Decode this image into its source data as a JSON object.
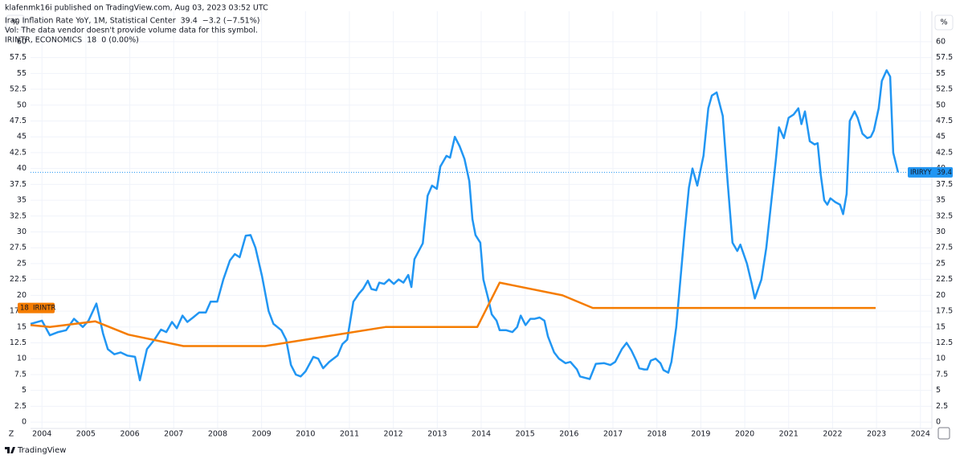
{
  "chart_data": {
    "type": "line",
    "published": "klafenmk16i published on TradingView.com, Aug 03, 2023 03:52 UTC",
    "title": "Iran Inflation Rate YoY, 1M, Statistical Center",
    "change": "−3.2 (−7.51%)",
    "vol_note": "Vol: The data vendor doesn't provide volume data for this symbol.",
    "second_title": "IRINTR, ECONOMICS",
    "second_change": "0 (0.00%)",
    "y_unit": "%",
    "z_button": "Z",
    "footer": "TradingView",
    "xlim": [
      2003.74,
      2024.26
    ],
    "xticks": [
      2004,
      2005,
      2006,
      2007,
      2008,
      2009,
      2010,
      2011,
      2012,
      2013,
      2014,
      2015,
      2016,
      2017,
      2018,
      2019,
      2020,
      2021,
      2022,
      2023,
      2024
    ],
    "ylim": [
      -1,
      61
    ],
    "yticks": [
      0,
      2.5,
      5,
      7.5,
      10,
      12.5,
      15,
      17.5,
      20,
      22.5,
      25,
      27.5,
      30,
      32.5,
      35,
      37.5,
      40,
      42.5,
      45,
      47.5,
      50,
      52.5,
      55,
      57.5,
      60
    ],
    "grid": true,
    "series": [
      {
        "name": "IRIRYY",
        "color": "#2196f3",
        "x": [
          2003.74,
          2004.0,
          2004.18,
          2004.37,
          2004.55,
          2004.73,
          2004.93,
          2005.06,
          2005.24,
          2005.39,
          2005.5,
          2005.65,
          2005.79,
          2005.94,
          2006.12,
          2006.23,
          2006.39,
          2006.56,
          2006.71,
          2006.83,
          2006.96,
          2007.07,
          2007.2,
          2007.31,
          2007.44,
          2007.58,
          2007.73,
          2007.84,
          2007.99,
          2008.13,
          2008.28,
          2008.39,
          2008.5,
          2008.64,
          2008.75,
          2008.86,
          2009.01,
          2009.16,
          2009.27,
          2009.45,
          2009.56,
          2009.67,
          2009.78,
          2009.89,
          2010.0,
          2010.18,
          2010.29,
          2010.4,
          2010.54,
          2010.73,
          2010.84,
          2010.95,
          2011.09,
          2011.22,
          2011.31,
          2011.42,
          2011.5,
          2011.61,
          2011.68,
          2011.79,
          2011.9,
          2012.01,
          2012.12,
          2012.23,
          2012.34,
          2012.41,
          2012.48,
          2012.67,
          2012.78,
          2012.88,
          2012.99,
          2013.07,
          2013.21,
          2013.29,
          2013.4,
          2013.51,
          2013.62,
          2013.73,
          2013.8,
          2013.87,
          2013.98,
          2014.05,
          2014.16,
          2014.24,
          2014.35,
          2014.42,
          2014.57,
          2014.71,
          2014.82,
          2014.9,
          2015.01,
          2015.12,
          2015.22,
          2015.33,
          2015.44,
          2015.52,
          2015.66,
          2015.77,
          2015.92,
          2016.03,
          2016.18,
          2016.25,
          2016.36,
          2016.47,
          2016.61,
          2016.8,
          2016.94,
          2017.05,
          2017.2,
          2017.31,
          2017.42,
          2017.53,
          2017.6,
          2017.71,
          2017.78,
          2017.86,
          2017.97,
          2018.08,
          2018.15,
          2018.26,
          2018.33,
          2018.44,
          2018.63,
          2018.73,
          2018.81,
          2018.92,
          2019.06,
          2019.17,
          2019.25,
          2019.36,
          2019.5,
          2019.61,
          2019.72,
          2019.83,
          2019.9,
          2020.05,
          2020.16,
          2020.23,
          2020.38,
          2020.49,
          2020.6,
          2020.71,
          2020.78,
          2020.89,
          2021.0,
          2021.11,
          2021.22,
          2021.29,
          2021.37,
          2021.48,
          2021.59,
          2021.66,
          2021.73,
          2021.81,
          2021.88,
          2021.95,
          2022.06,
          2022.17,
          2022.24,
          2022.32,
          2022.39,
          2022.5,
          2022.57,
          2022.68,
          2022.79,
          2022.87,
          2022.94,
          2023.05,
          2023.12,
          2023.23,
          2023.31,
          2023.38,
          2023.49
        ],
        "values": [
          15.5,
          16,
          13.7,
          14.2,
          14.5,
          16.3,
          15,
          16,
          18.7,
          14,
          11.5,
          10.7,
          11,
          10.5,
          10.3,
          6.6,
          11.5,
          13,
          14.6,
          14.2,
          15.8,
          14.8,
          16.8,
          15.8,
          16.5,
          17.3,
          17.3,
          19,
          19,
          22.5,
          25.5,
          26.5,
          26,
          29.4,
          29.5,
          27.5,
          23,
          17.5,
          15.5,
          14.5,
          13,
          9,
          7.5,
          7.2,
          8,
          10.3,
          10,
          8.5,
          9.5,
          10.5,
          12.3,
          13,
          19,
          20.3,
          21,
          22.3,
          21,
          20.8,
          22,
          21.8,
          22.5,
          21.8,
          22.5,
          22,
          23.2,
          21.3,
          25.7,
          28.2,
          35.7,
          37.3,
          36.8,
          40.3,
          42,
          41.7,
          45,
          43.5,
          41.5,
          38,
          32,
          29.5,
          28.3,
          22.5,
          19.5,
          17,
          16,
          14.5,
          14.5,
          14.2,
          15,
          16.8,
          15.3,
          16.3,
          16.3,
          16.5,
          16,
          13.5,
          11,
          10,
          9.3,
          9.5,
          8.3,
          7.2,
          7,
          6.8,
          9.2,
          9.3,
          9,
          9.5,
          11.5,
          12.5,
          11.3,
          9.7,
          8.5,
          8.3,
          8.3,
          9.7,
          10,
          9.3,
          8.2,
          7.8,
          9.5,
          15,
          30,
          37,
          40,
          37.3,
          42,
          49.5,
          51.5,
          52,
          48.3,
          38,
          28.3,
          27,
          28,
          25,
          21.8,
          19.5,
          22.5,
          27.5,
          34.5,
          41.5,
          46.5,
          44.8,
          48,
          48.5,
          49.5,
          47,
          49,
          44.3,
          43.8,
          44,
          39,
          35,
          34.3,
          35.3,
          34.7,
          34.3,
          32.8,
          36,
          47.5,
          49,
          48,
          45.5,
          44.8,
          45,
          46,
          49.5,
          53.8,
          55.5,
          54.5,
          42.5,
          39.4
        ]
      },
      {
        "name": "IRINTR",
        "color": "#f57c00",
        "x": [
          2003.74,
          2004.18,
          2005.21,
          2005.97,
          2007.22,
          2009.08,
          2011.82,
          2013.91,
          2014.42,
          2015.85,
          2016.54,
          2022.98
        ],
        "values": [
          15.3,
          15,
          15.9,
          13.8,
          12,
          12,
          15,
          15,
          22,
          20,
          18,
          18
        ]
      }
    ]
  }
}
